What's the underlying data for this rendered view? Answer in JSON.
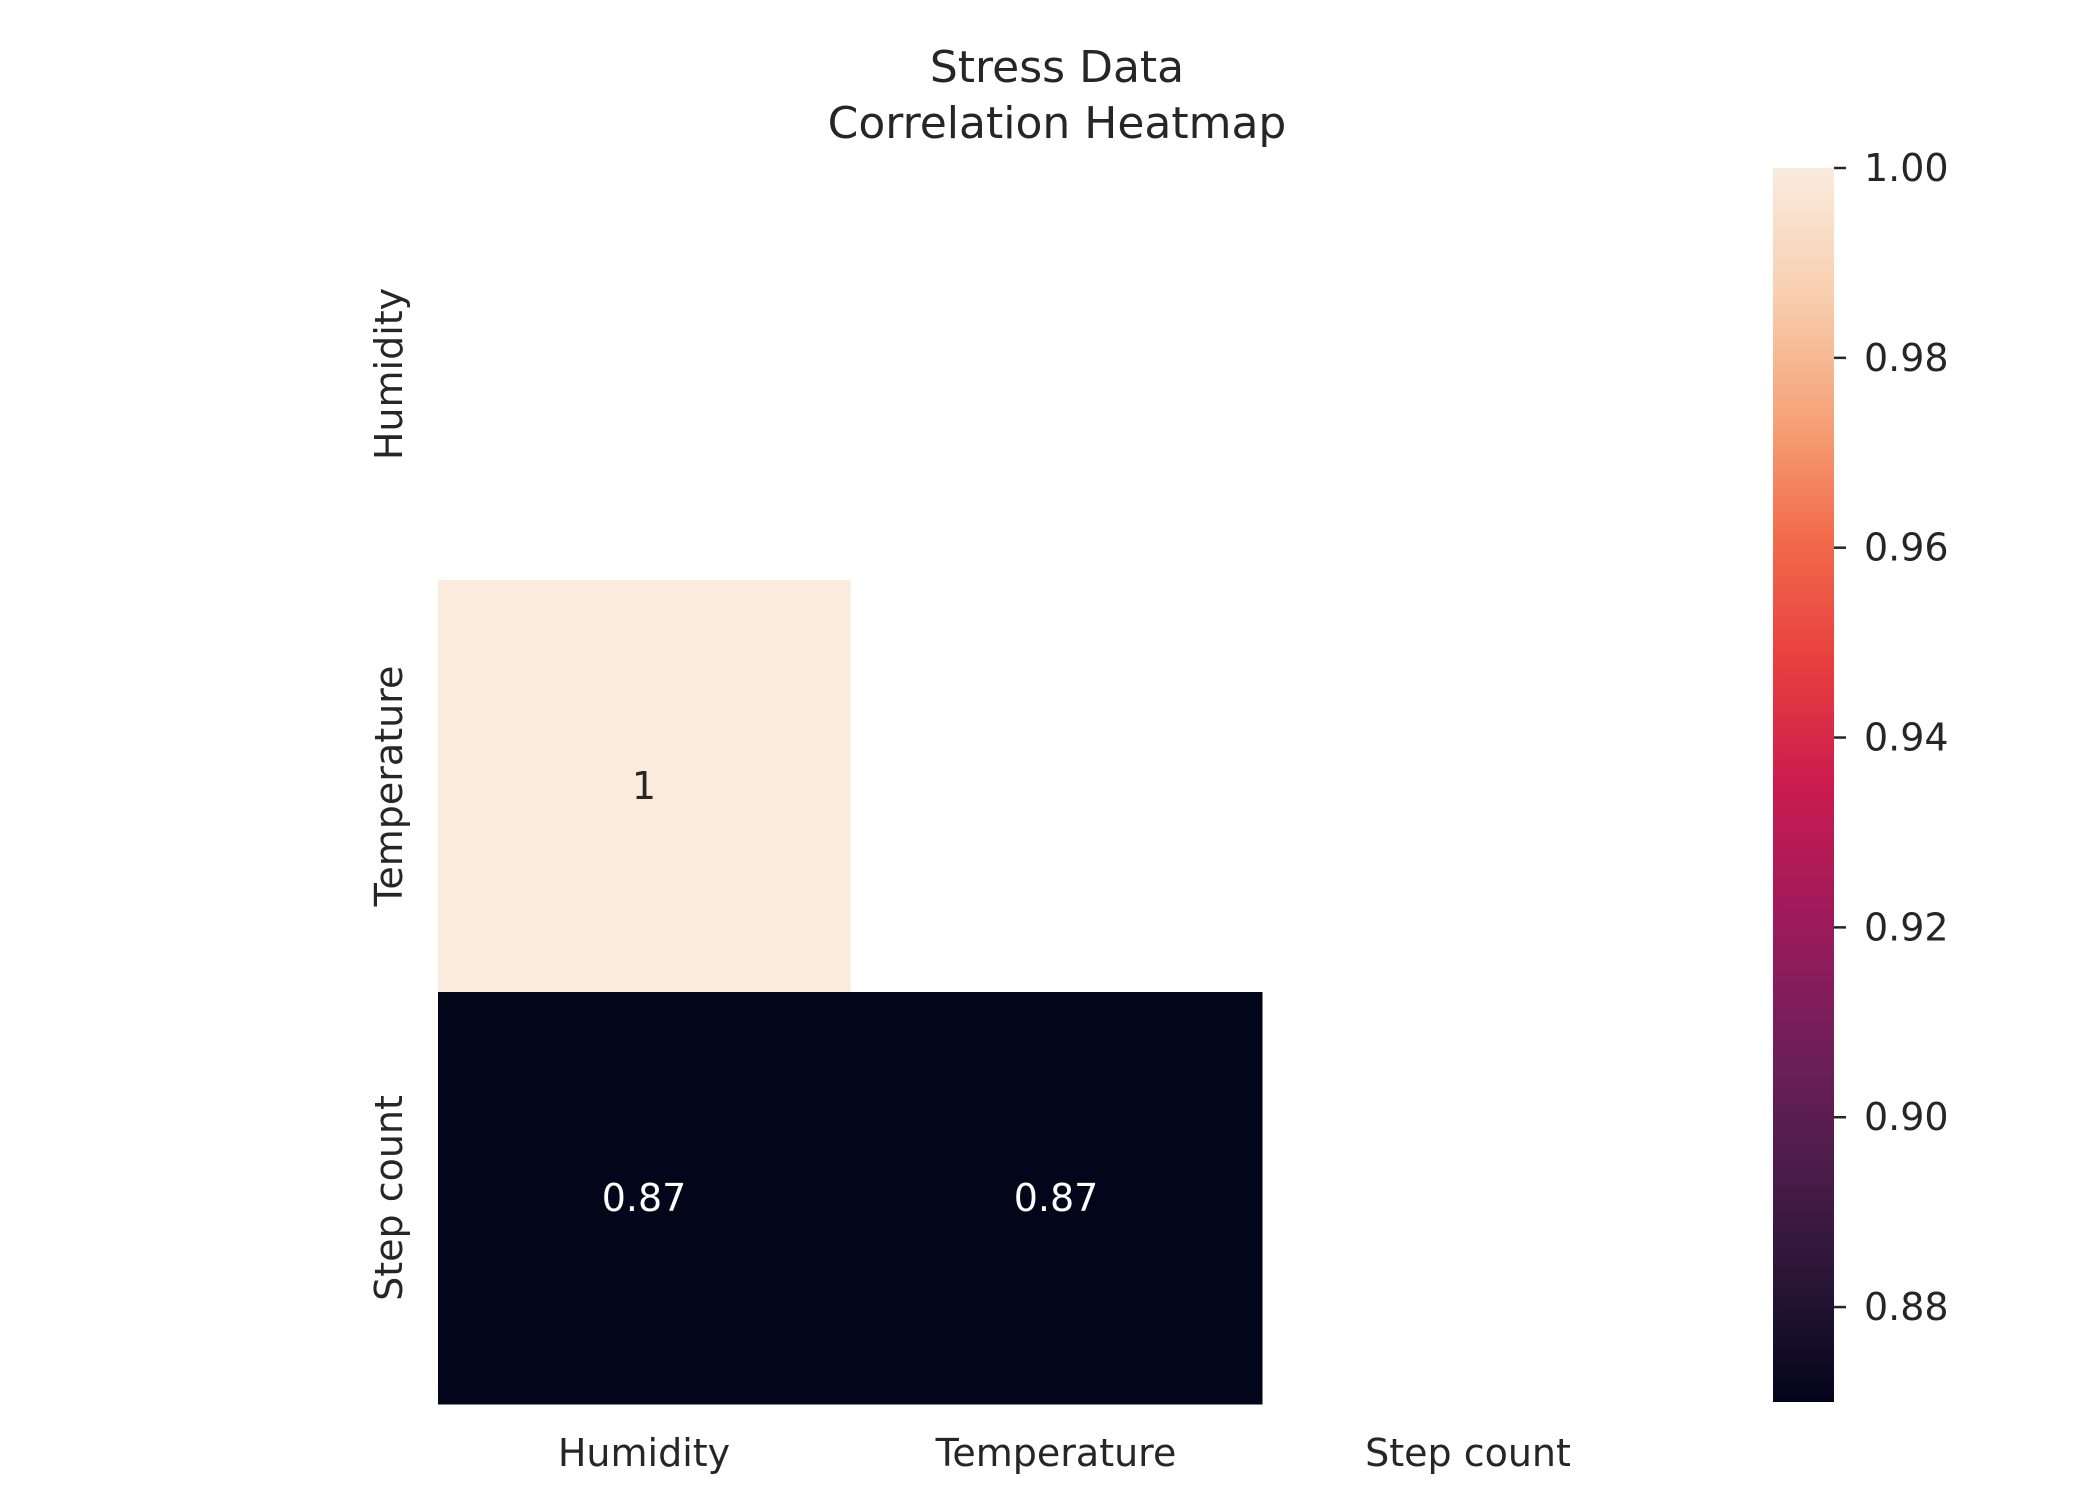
{
  "chart_data": {
    "type": "heatmap",
    "title_lines": [
      "Stress Data",
      "Correlation Heatmap"
    ],
    "rows": [
      "Humidity",
      "Temperature",
      "Step count"
    ],
    "columns": [
      "Humidity",
      "Temperature",
      "Step count"
    ],
    "mask": "upper triangle including diagonal",
    "cells": [
      {
        "row": "Temperature",
        "column": "Humidity",
        "value": 1.0,
        "label": "1"
      },
      {
        "row": "Step count",
        "column": "Humidity",
        "value": 0.87,
        "label": "0.87"
      },
      {
        "row": "Step count",
        "column": "Temperature",
        "value": 0.87,
        "label": "0.87"
      }
    ],
    "colorbar": {
      "range": [
        0.87,
        1.0
      ],
      "ticks": [
        0.88,
        0.9,
        0.92,
        0.94,
        0.96,
        0.98,
        1.0
      ],
      "tick_labels": [
        "0.88",
        "0.90",
        "0.92",
        "0.94",
        "0.96",
        "0.98",
        "1.00"
      ],
      "colormap": "rocket",
      "colormap_stops": [
        "#03051a",
        "#2a1637",
        "#4f1d4c",
        "#761e5c",
        "#a11a5b",
        "#cb1b4f",
        "#e83f3f",
        "#f26b4b",
        "#f6a47a",
        "#f8cfb0",
        "#faebdd"
      ]
    },
    "grid": false,
    "legend": "colorbar right"
  }
}
